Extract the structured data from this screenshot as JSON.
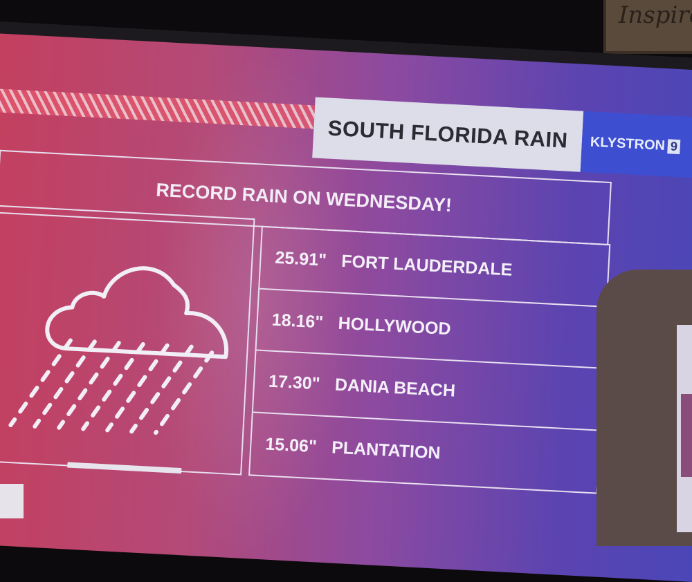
{
  "background_sign": {
    "text": "Inspire"
  },
  "graphic": {
    "title": "SOUTH FLORIDA RAIN",
    "brand": {
      "name": "KLYSTRON",
      "number": "9"
    },
    "headline": "RECORD RAIN ON WEDNESDAY!",
    "icon": "rain-cloud-icon",
    "rainfall": [
      {
        "amount": "25.91\"",
        "location": "FORT LAUDERDALE"
      },
      {
        "amount": "18.16\"",
        "location": "HOLLYWOOD"
      },
      {
        "amount": "17.30\"",
        "location": "DANIA BEACH"
      },
      {
        "amount": "15.06\"",
        "location": "PLANTATION"
      }
    ]
  },
  "colors": {
    "left": "#c43f5e",
    "right": "#4a46b8",
    "brand_bg": "#3d4fd0"
  }
}
